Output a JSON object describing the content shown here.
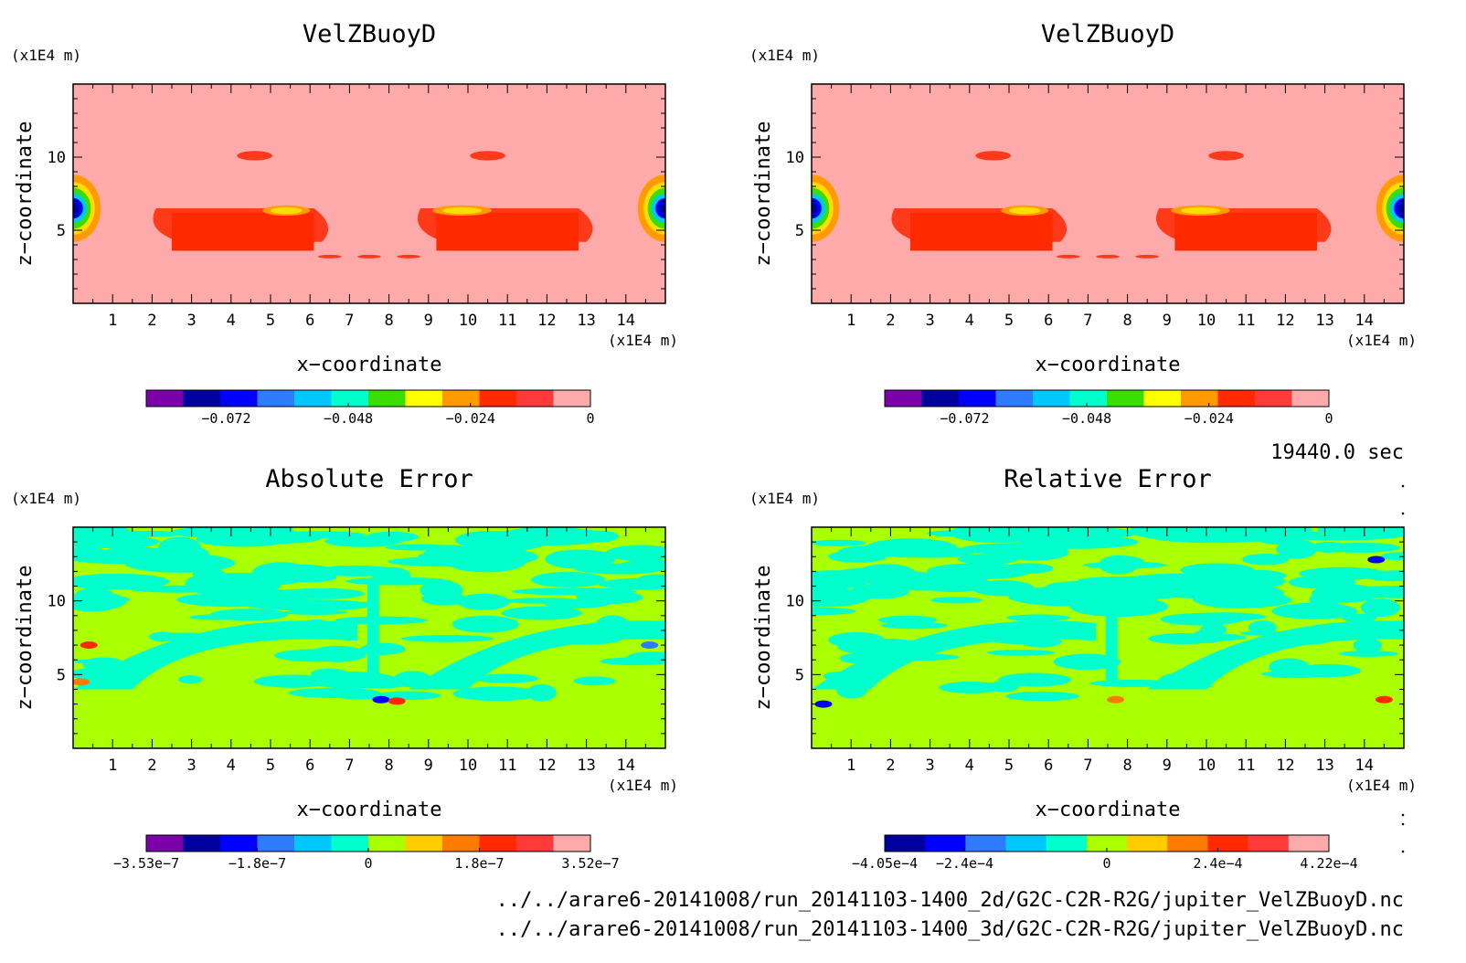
{
  "info": {
    "time": "19440.0 sec",
    "files": [
      "../../arare6-20141008/run_20141103-1400_2d/G2C-C2R-R2G/jupiter_VelZBuoyD.nc",
      "../../arare6-20141008/run_20141103-1400_3d/G2C-C2R-R2G/jupiter_VelZBuoyD.nc"
    ]
  },
  "panels": [
    {
      "title": "VelZBuoyD",
      "xlabel": "x−coordinate",
      "ylabel": "z−coordinate",
      "xunit": "(x1E4 m)",
      "yunit": "(x1E4 m)",
      "xticks": [
        "1",
        "2",
        "3",
        "4",
        "5",
        "6",
        "7",
        "8",
        "9",
        "10",
        "11",
        "12",
        "13",
        "14"
      ],
      "yticks": [
        "5",
        "10"
      ],
      "background": "#ffaaaa",
      "colorbar": {
        "colors": [
          "#7b00aa",
          "#00009f",
          "#0000ff",
          "#2f7bff",
          "#00c8ff",
          "#00ffcc",
          "#3ade00",
          "#ffff00",
          "#ff9b00",
          "#ff2a00",
          "#ff3a3a",
          "#ffaaaa"
        ],
        "labels": [
          "−0.072",
          "−0.048",
          "−0.024",
          "0"
        ]
      }
    },
    {
      "title": "VelZBuoyD",
      "xlabel": "x−coordinate",
      "ylabel": "z−coordinate",
      "xunit": "(x1E4 m)",
      "yunit": "(x1E4 m)",
      "xticks": [
        "1",
        "2",
        "3",
        "4",
        "5",
        "6",
        "7",
        "8",
        "9",
        "10",
        "11",
        "12",
        "13",
        "14"
      ],
      "yticks": [
        "5",
        "10"
      ],
      "background": "#ffaaaa",
      "colorbar": {
        "colors": [
          "#7b00aa",
          "#00009f",
          "#0000ff",
          "#2f7bff",
          "#00c8ff",
          "#00ffcc",
          "#3ade00",
          "#ffff00",
          "#ff9b00",
          "#ff2a00",
          "#ff3a3a",
          "#ffaaaa"
        ],
        "labels": [
          "−0.072",
          "−0.048",
          "−0.024",
          "0"
        ]
      }
    },
    {
      "title": "Absolute Error",
      "xlabel": "x−coordinate",
      "ylabel": "z−coordinate",
      "xunit": "(x1E4 m)",
      "yunit": "(x1E4 m)",
      "xticks": [
        "1",
        "2",
        "3",
        "4",
        "5",
        "6",
        "7",
        "8",
        "9",
        "10",
        "11",
        "12",
        "13",
        "14"
      ],
      "yticks": [
        "5",
        "10"
      ],
      "background": "#aaff00",
      "colorbar": {
        "colors": [
          "#7b00aa",
          "#00009f",
          "#0000ff",
          "#2f7bff",
          "#00c8ff",
          "#00ffcc",
          "#aaff00",
          "#ffcc00",
          "#ff7b00",
          "#ff2a00",
          "#ff3a3a",
          "#ffaaaa"
        ],
        "labels": [
          "−3.53e−7",
          "−1.8e−7",
          "0",
          "1.8e−7",
          "3.52e−7"
        ]
      }
    },
    {
      "title": "Relative Error",
      "xlabel": "x−coordinate",
      "ylabel": "z−coordinate",
      "xunit": "(x1E4 m)",
      "yunit": "(x1E4 m)",
      "xticks": [
        "1",
        "2",
        "3",
        "4",
        "5",
        "6",
        "7",
        "8",
        "9",
        "10",
        "11",
        "12",
        "13",
        "14"
      ],
      "yticks": [
        "5",
        "10"
      ],
      "background": "#aaff00",
      "colorbar": {
        "colors": [
          "#00009f",
          "#0000ff",
          "#2f7bff",
          "#00c8ff",
          "#00ffcc",
          "#aaff00",
          "#ffcc00",
          "#ff7b00",
          "#ff2a00",
          "#ff3a3a",
          "#ffaaaa"
        ],
        "labels": [
          "−4.05e−4",
          "−2.4e−4",
          "0",
          "2.4e−4",
          "4.22e−4"
        ]
      }
    }
  ],
  "chart_data": [
    {
      "type": "heatmap",
      "title": "VelZBuoyD",
      "xlabel": "x−coordinate",
      "ylabel": "z−coordinate",
      "xlim": [
        0,
        15
      ],
      "ylim": [
        0,
        15
      ],
      "colorbar_ticks": [
        -0.072,
        -0.048,
        -0.024,
        0
      ]
    },
    {
      "type": "heatmap",
      "title": "VelZBuoyD",
      "xlabel": "x−coordinate",
      "ylabel": "z−coordinate",
      "xlim": [
        0,
        15
      ],
      "ylim": [
        0,
        15
      ],
      "colorbar_ticks": [
        -0.072,
        -0.048,
        -0.024,
        0
      ]
    },
    {
      "type": "heatmap",
      "title": "Absolute Error",
      "xlabel": "x−coordinate",
      "ylabel": "z−coordinate",
      "xlim": [
        0,
        15
      ],
      "ylim": [
        0,
        15
      ],
      "colorbar_ticks": [
        -3.53e-07,
        -1.8e-07,
        0,
        1.8e-07,
        3.52e-07
      ]
    },
    {
      "type": "heatmap",
      "title": "Relative Error",
      "xlabel": "x−coordinate",
      "ylabel": "z−coordinate",
      "xlim": [
        0,
        15
      ],
      "ylim": [
        0,
        15
      ],
      "colorbar_ticks": [
        -0.000405,
        -0.00024,
        0,
        0.00024,
        0.000422
      ]
    }
  ]
}
